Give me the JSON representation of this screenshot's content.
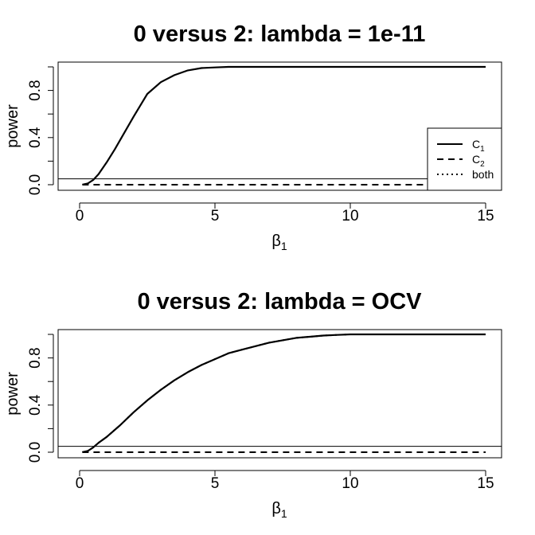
{
  "chart_data": [
    {
      "type": "line",
      "title": "0 versus 2: lambda = 1e-11",
      "xlabel": "β",
      "xlabel_sub": "1",
      "ylabel": "power",
      "xlim": [
        0,
        15
      ],
      "ylim": [
        0,
        1
      ],
      "xticks": [
        0,
        5,
        10,
        15
      ],
      "xtick_labels": [
        "0",
        "5",
        "10",
        "15"
      ],
      "yticks": [
        0,
        0.2,
        0.4,
        0.6,
        0.8,
        1.0
      ],
      "ytick_labels": [
        "0.0",
        "",
        "0.4",
        "",
        "0.8",
        ""
      ],
      "reference_line": 0.05,
      "legend": {
        "position": "bottom-right",
        "entries": [
          {
            "label": "C",
            "sub": "1",
            "style": "solid"
          },
          {
            "label": "C",
            "sub": "2",
            "style": "dashed"
          },
          {
            "label": "both",
            "sub": "",
            "style": "dotted"
          }
        ]
      },
      "series": [
        {
          "name": "C1",
          "style": "solid",
          "x": [
            0.1,
            0.3,
            0.5,
            0.7,
            1.0,
            1.3,
            1.6,
            2.0,
            2.5,
            3.0,
            3.5,
            4.0,
            4.5,
            5.0,
            5.5,
            6,
            8,
            10,
            12,
            15
          ],
          "y": [
            0.0,
            0.01,
            0.04,
            0.09,
            0.19,
            0.3,
            0.42,
            0.58,
            0.77,
            0.87,
            0.93,
            0.97,
            0.99,
            0.995,
            1.0,
            1.0,
            1.0,
            1.0,
            1.0,
            1.0
          ]
        },
        {
          "name": "C2",
          "style": "dashed",
          "x": [
            0.1,
            15
          ],
          "y": [
            0.0,
            0.0
          ]
        }
      ]
    },
    {
      "type": "line",
      "title": "0 versus 2: lambda = OCV",
      "xlabel": "β",
      "xlabel_sub": "1",
      "ylabel": "power",
      "xlim": [
        0,
        15
      ],
      "ylim": [
        0,
        1
      ],
      "xticks": [
        0,
        5,
        10,
        15
      ],
      "xtick_labels": [
        "0",
        "5",
        "10",
        "15"
      ],
      "yticks": [
        0,
        0.2,
        0.4,
        0.6,
        0.8,
        1.0
      ],
      "ytick_labels": [
        "0.0",
        "",
        "0.4",
        "",
        "0.8",
        ""
      ],
      "reference_line": 0.05,
      "series": [
        {
          "name": "C1",
          "style": "solid",
          "x": [
            0.1,
            0.3,
            0.5,
            0.7,
            1.0,
            1.5,
            2.0,
            2.5,
            3.0,
            3.5,
            4.0,
            4.5,
            5.0,
            5.5,
            6.0,
            6.5,
            7.0,
            7.5,
            8.0,
            8.5,
            9.0,
            9.5,
            10.0,
            11,
            12,
            15
          ],
          "y": [
            0.0,
            0.01,
            0.04,
            0.08,
            0.13,
            0.23,
            0.34,
            0.44,
            0.53,
            0.61,
            0.68,
            0.74,
            0.79,
            0.84,
            0.87,
            0.9,
            0.93,
            0.95,
            0.97,
            0.98,
            0.99,
            0.995,
            1.0,
            1.0,
            1.0,
            1.0
          ]
        },
        {
          "name": "C2",
          "style": "dashed",
          "x": [
            0.1,
            15
          ],
          "y": [
            0.0,
            0.0
          ]
        },
        {
          "name": "both",
          "style": "dotted",
          "x": [
            0.1,
            0.3,
            0.5,
            0.7,
            1.0,
            1.5,
            2.0,
            2.5,
            3.0,
            3.5,
            4.0,
            4.5,
            5.0,
            5.5,
            6.0,
            6.5,
            7.0,
            7.5,
            8.0,
            8.5,
            9.0,
            9.5,
            10.0,
            11,
            12,
            15
          ],
          "y": [
            0.0,
            0.01,
            0.04,
            0.08,
            0.13,
            0.23,
            0.34,
            0.44,
            0.53,
            0.61,
            0.68,
            0.74,
            0.79,
            0.84,
            0.87,
            0.9,
            0.93,
            0.95,
            0.97,
            0.98,
            0.99,
            0.995,
            1.0,
            1.0,
            1.0,
            1.0
          ]
        }
      ]
    }
  ]
}
